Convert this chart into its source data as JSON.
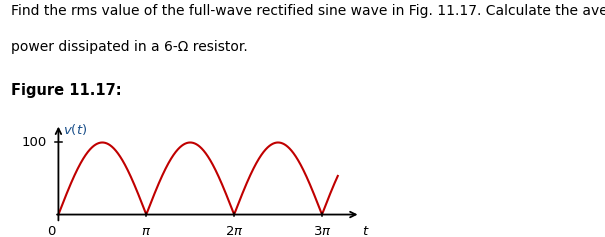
{
  "title_text1": "Find the rms value of the full-wave rectified sine wave in Fig. 11.17. Calculate the average",
  "title_text2": "power dissipated in a 6-Ω resistor.",
  "figure_label": "Figure 11.17:",
  "amplitude": 100,
  "wave_color": "#c00000",
  "wave_linewidth": 1.5,
  "bg_color": "#ffffff",
  "text_color": "#000000",
  "axis_color": "#000000",
  "vt_color": "#1a4f8a",
  "font_size_body": 10,
  "font_size_fig_label": 10.5,
  "font_size_axis": 9.5
}
